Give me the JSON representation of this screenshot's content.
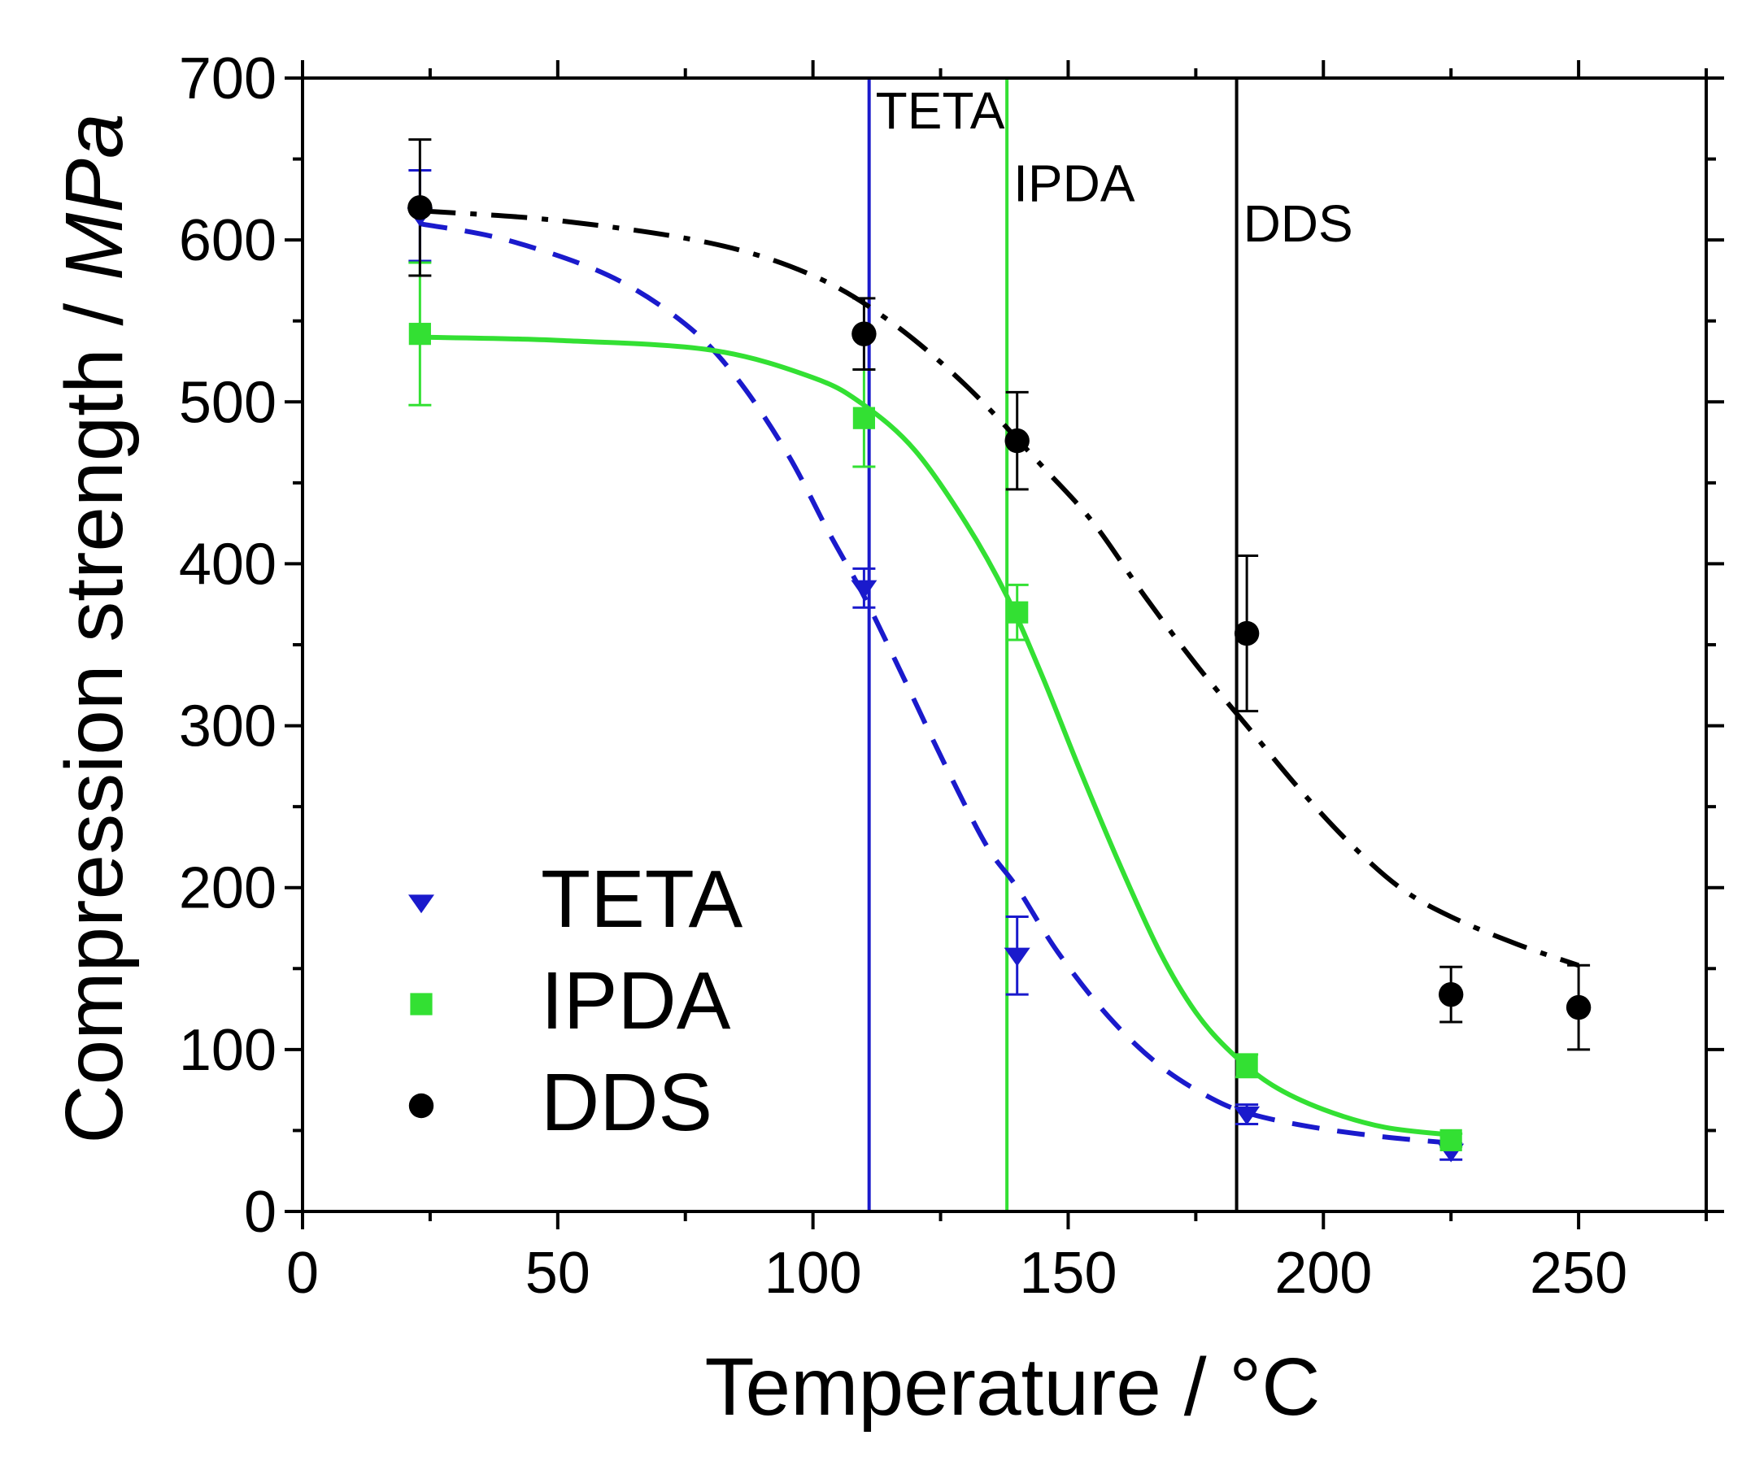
{
  "chart_data": {
    "type": "scatter",
    "title": "",
    "xlabel": "Temperature  /  °C",
    "ylabel_main": "Compression strength  /  ",
    "ylabel_unit": "MPa",
    "xlim": [
      0,
      275
    ],
    "ylim": [
      0,
      700
    ],
    "x_ticks": [
      0,
      50,
      100,
      150,
      200,
      250
    ],
    "x_tick_labels": [
      "0",
      "50",
      "100",
      "150",
      "200",
      "250"
    ],
    "y_ticks": [
      0,
      100,
      200,
      300,
      400,
      500,
      600,
      700
    ],
    "y_tick_labels": [
      "0",
      "100",
      "200",
      "300",
      "400",
      "500",
      "600",
      "700"
    ],
    "x_minor_step": 25,
    "y_minor_step": 50,
    "series": [
      {
        "name": "TETA",
        "color": "#1a1acc",
        "marker": "triangle-down",
        "points": [
          {
            "x": 23,
            "y": 615,
            "err": 28
          },
          {
            "x": 110,
            "y": 385,
            "err": 12
          },
          {
            "x": 140,
            "y": 158,
            "err": 24
          },
          {
            "x": 185,
            "y": 60,
            "err": 6
          },
          {
            "x": 225,
            "y": 37,
            "err": 5
          }
        ],
        "fit": [
          [
            23,
            610
          ],
          [
            40,
            600
          ],
          [
            60,
            578
          ],
          [
            75,
            548
          ],
          [
            85,
            515
          ],
          [
            95,
            468
          ],
          [
            103,
            420
          ],
          [
            110,
            380
          ],
          [
            118,
            328
          ],
          [
            126,
            275
          ],
          [
            134,
            226
          ],
          [
            140,
            200
          ],
          [
            148,
            160
          ],
          [
            158,
            120
          ],
          [
            168,
            90
          ],
          [
            178,
            70
          ],
          [
            186,
            60
          ],
          [
            198,
            52
          ],
          [
            212,
            46
          ],
          [
            226,
            42
          ]
        ],
        "fit_style": "dash"
      },
      {
        "name": "IPDA",
        "color": "#33e033",
        "marker": "square",
        "points": [
          {
            "x": 23,
            "y": 542,
            "err": 44
          },
          {
            "x": 110,
            "y": 490,
            "err": 30
          },
          {
            "x": 140,
            "y": 370,
            "err": 17
          },
          {
            "x": 185,
            "y": 90,
            "err": 7
          },
          {
            "x": 225,
            "y": 44,
            "err": 4
          }
        ],
        "fit": [
          [
            23,
            540
          ],
          [
            50,
            538
          ],
          [
            80,
            532
          ],
          [
            100,
            515
          ],
          [
            110,
            498
          ],
          [
            120,
            470
          ],
          [
            130,
            425
          ],
          [
            138,
            380
          ],
          [
            145,
            330
          ],
          [
            152,
            275
          ],
          [
            160,
            215
          ],
          [
            168,
            160
          ],
          [
            175,
            123
          ],
          [
            182,
            98
          ],
          [
            190,
            78
          ],
          [
            200,
            63
          ],
          [
            212,
            52
          ],
          [
            226,
            47
          ]
        ],
        "fit_style": "solid"
      },
      {
        "name": "DDS",
        "color": "#000000",
        "marker": "circle",
        "points": [
          {
            "x": 23,
            "y": 620,
            "err": 42
          },
          {
            "x": 110,
            "y": 542,
            "err": 22
          },
          {
            "x": 140,
            "y": 476,
            "err": 30
          },
          {
            "x": 185,
            "y": 357,
            "err": 48
          },
          {
            "x": 225,
            "y": 134,
            "err": 17
          },
          {
            "x": 250,
            "y": 126,
            "err": 26
          }
        ],
        "fit": [
          [
            23,
            618
          ],
          [
            50,
            612
          ],
          [
            80,
            598
          ],
          [
            100,
            578
          ],
          [
            115,
            550
          ],
          [
            130,
            510
          ],
          [
            145,
            460
          ],
          [
            155,
            425
          ],
          [
            165,
            380
          ],
          [
            175,
            338
          ],
          [
            185,
            300
          ],
          [
            195,
            262
          ],
          [
            205,
            228
          ],
          [
            215,
            200
          ],
          [
            225,
            182
          ],
          [
            238,
            165
          ],
          [
            250,
            152
          ]
        ],
        "fit_style": "dashdot"
      }
    ],
    "vertical_lines": [
      {
        "x": 111,
        "label": "TETA",
        "color": "#1a1acc",
        "label_y": 680
      },
      {
        "x": 138,
        "label": "IPDA",
        "color": "#33e033",
        "label_y": 635
      },
      {
        "x": 183,
        "label": "DDS",
        "color": "#000000",
        "label_y": 610
      }
    ],
    "legend": {
      "position": "bottom-left",
      "entries": [
        "TETA",
        "IPDA",
        "DDS"
      ]
    }
  }
}
